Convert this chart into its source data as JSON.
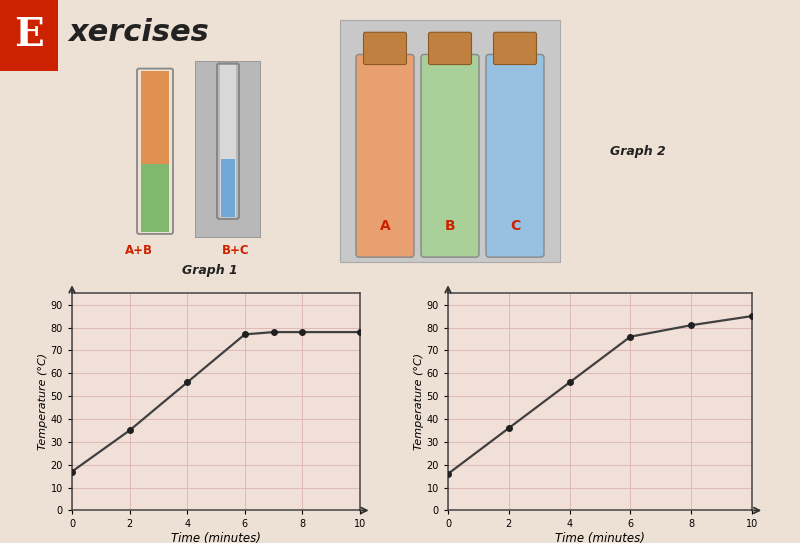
{
  "graph1_xlabel": "Time (minutes)",
  "graph1_ylabel": "Temperature (°C)",
  "graph2_xlabel": "Time (minutes)",
  "graph2_ylabel": "Temperature (°C)",
  "graph1_x": [
    0,
    2,
    4,
    6,
    7,
    8,
    10
  ],
  "graph1_y": [
    17,
    35,
    56,
    77,
    78,
    78,
    78
  ],
  "graph2_x": [
    0,
    2,
    4,
    6,
    8,
    10
  ],
  "graph2_y": [
    16,
    36,
    56,
    76,
    81,
    85
  ],
  "xlim": [
    0,
    10
  ],
  "ylim": [
    0,
    95
  ],
  "yticks": [
    0,
    10,
    20,
    30,
    40,
    50,
    60,
    70,
    80,
    90
  ],
  "xticks": [
    0,
    2,
    4,
    6,
    8,
    10
  ],
  "line_color": "#404040",
  "marker_color": "#202020",
  "grid_color": "#ddb8b8",
  "bg_color": "#ede0d4",
  "graph_bg": "#f0e0d8",
  "E_bg_color": "#cc2200",
  "label_color": "#cc2200",
  "graph1_label": "Graph 1",
  "graph2_label": "Graph 2",
  "tube_label_AB": "A+B",
  "tube_label_BC": "B+C",
  "bottle_labels": [
    "A",
    "B",
    "C"
  ],
  "bottle_colors": [
    "#e8a070",
    "#a8d098",
    "#98c0e0"
  ],
  "cork_color": "#c08040",
  "cork_edge": "#8a5a22",
  "tube_orange": "#e09050",
  "tube_green": "#80b870",
  "tube_blue": "#70a8d8",
  "gray_box": "#b8b8b8"
}
